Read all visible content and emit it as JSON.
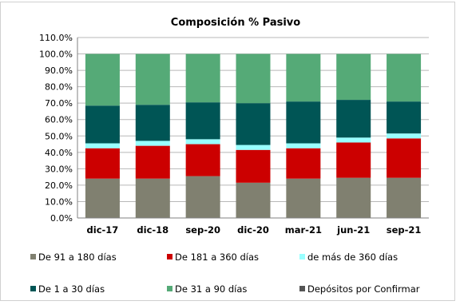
{
  "chart_data": {
    "type": "bar",
    "stacked": true,
    "title": "Composición % Pasivo",
    "xlabel": "",
    "ylabel": "",
    "ylim": [
      0,
      110
    ],
    "ytick_step": 10,
    "ytick_format": "percent_1dp",
    "grid": true,
    "legend_position": "bottom",
    "categories": [
      "dic-17",
      "dic-18",
      "sep-20",
      "dic-20",
      "mar-21",
      "jun-21",
      "sep-21"
    ],
    "series": [
      {
        "name": "De 91 a 180 días",
        "color": "#808070",
        "values": [
          24,
          24,
          25.5,
          21.5,
          24,
          24.5,
          24.5
        ]
      },
      {
        "name": "De 181 a 360 días",
        "color": "#cc0000",
        "values": [
          18.5,
          20,
          19.5,
          20,
          18.5,
          21.5,
          24
        ]
      },
      {
        "name": "de más de 360 días",
        "color": "#99ffff",
        "values": [
          3,
          3,
          3,
          3,
          3,
          3,
          3
        ]
      },
      {
        "name": "De 1 a 30 días",
        "color": "#005555",
        "values": [
          23,
          22,
          22.5,
          25.5,
          25.5,
          23,
          19.5
        ]
      },
      {
        "name": "De 31 a 90 días",
        "color": "#55aa77",
        "values": [
          31.5,
          31,
          29.5,
          30,
          29,
          28,
          29
        ]
      },
      {
        "name": "Depósitos por Confirmar",
        "color": "#555555",
        "values": [
          0,
          0,
          0,
          0,
          0,
          0,
          0
        ]
      }
    ]
  }
}
